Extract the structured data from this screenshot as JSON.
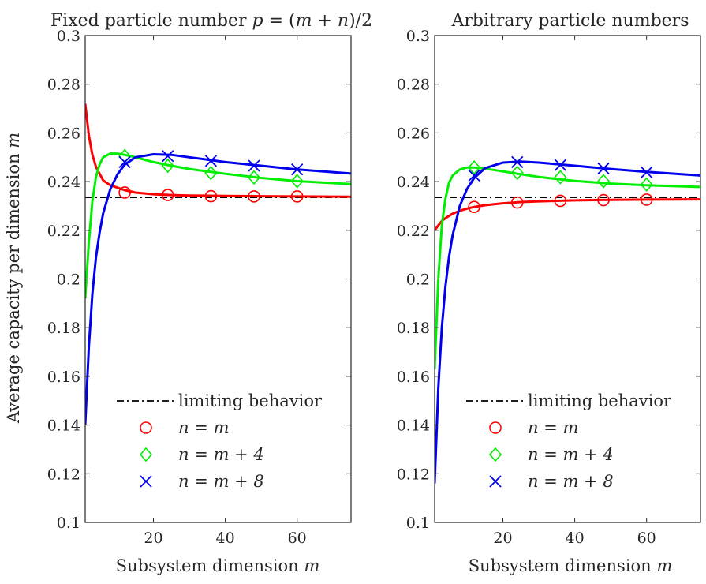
{
  "chart_data": [
    {
      "type": "line",
      "title": "Fixed particle number p = (m + n)/2",
      "xlabel": "Subsystem dimension m",
      "ylabel": "Average capacity per dimension m",
      "xlim": [
        1,
        75
      ],
      "ylim": [
        0.1,
        0.3
      ],
      "xticks": [
        "20",
        "40",
        "60"
      ],
      "yticks": [
        "0.1",
        "0.12",
        "0.14",
        "0.16",
        "0.18",
        "0.2",
        "0.22",
        "0.24",
        "0.26",
        "0.28",
        "0.3"
      ],
      "grid": false,
      "legend_position": "bottom-right",
      "limiting": {
        "name": "limiting behavior",
        "y": 0.2335
      },
      "series": [
        {
          "name": "n = m",
          "color": "#ff0000",
          "marker": "circle",
          "curve": {
            "x": [
              1,
              2,
              3,
              4,
              6,
              8,
              10,
              12,
              15,
              20,
              25,
              30,
              40,
              50,
              60,
              75
            ],
            "y": [
              0.272,
              0.259,
              0.251,
              0.246,
              0.2405,
              0.2385,
              0.2375,
              0.2365,
              0.2355,
              0.2348,
              0.2345,
              0.2343,
              0.2341,
              0.234,
              0.2339,
              0.2338
            ]
          },
          "markers": {
            "x": [
              12,
              24,
              36,
              48,
              60
            ],
            "y": [
              0.2355,
              0.2345,
              0.234,
              0.2339,
              0.2339
            ]
          }
        },
        {
          "name": "n = m + 4",
          "color": "#00ee00",
          "marker": "diamond",
          "curve": {
            "x": [
              1,
              2,
              3,
              4,
              5,
              6,
              8,
              10,
              12,
              15,
              20,
              25,
              30,
              40,
              50,
              60,
              75
            ],
            "y": [
              0.192,
              0.215,
              0.232,
              0.242,
              0.247,
              0.25,
              0.2515,
              0.2515,
              0.251,
              0.25,
              0.248,
              0.2465,
              0.2452,
              0.2432,
              0.2415,
              0.2402,
              0.239
            ]
          },
          "markers": {
            "x": [
              12,
              24,
              36,
              48,
              60
            ],
            "y": [
              0.2505,
              0.2465,
              0.2435,
              0.2417,
              0.2402
            ]
          }
        },
        {
          "name": "n = m + 8",
          "color": "#0000ee",
          "marker": "cross",
          "curve": {
            "x": [
              1,
              2,
              3,
              4,
              5,
              6,
              8,
              10,
              12,
              15,
              20,
              25,
              30,
              40,
              50,
              60,
              75
            ],
            "y": [
              0.14,
              0.172,
              0.194,
              0.209,
              0.219,
              0.227,
              0.237,
              0.243,
              0.247,
              0.25,
              0.2512,
              0.251,
              0.25,
              0.248,
              0.2465,
              0.245,
              0.2433
            ]
          },
          "markers": {
            "x": [
              12,
              24,
              36,
              48,
              60
            ],
            "y": [
              0.248,
              0.2505,
              0.2485,
              0.2465,
              0.245
            ]
          }
        }
      ]
    },
    {
      "type": "line",
      "title": "Arbitrary particle numbers",
      "xlabel": "Subsystem dimension m",
      "ylabel": "",
      "xlim": [
        1,
        75
      ],
      "ylim": [
        0.1,
        0.3
      ],
      "xticks": [
        "20",
        "40",
        "60"
      ],
      "yticks": [
        "0.1",
        "0.12",
        "0.14",
        "0.16",
        "0.18",
        "0.2",
        "0.22",
        "0.24",
        "0.26",
        "0.28",
        "0.3"
      ],
      "grid": false,
      "legend_position": "bottom-right",
      "limiting": {
        "name": "limiting behavior",
        "y": 0.2335
      },
      "series": [
        {
          "name": "n = m",
          "color": "#ff0000",
          "marker": "circle",
          "curve": {
            "x": [
              1,
              2,
              3,
              4,
              6,
              8,
              10,
              12,
              15,
              20,
              25,
              30,
              40,
              50,
              60,
              75
            ],
            "y": [
              0.22,
              0.222,
              0.2238,
              0.225,
              0.2268,
              0.228,
              0.2289,
              0.2296,
              0.2303,
              0.2311,
              0.2316,
              0.2319,
              0.2323,
              0.2325,
              0.2326,
              0.2327
            ]
          },
          "markers": {
            "x": [
              12,
              24,
              36,
              48,
              60
            ],
            "y": [
              0.2296,
              0.2314,
              0.2321,
              0.2324,
              0.2326
            ]
          }
        },
        {
          "name": "n = m + 4",
          "color": "#00ee00",
          "marker": "diamond",
          "curve": {
            "x": [
              1,
              2,
              3,
              4,
              5,
              6,
              8,
              10,
              12,
              15,
              20,
              25,
              30,
              40,
              50,
              60,
              75
            ],
            "y": [
              0.163,
              0.2,
              0.222,
              0.233,
              0.2395,
              0.2425,
              0.245,
              0.2458,
              0.2458,
              0.2453,
              0.2442,
              0.243,
              0.2419,
              0.2403,
              0.2392,
              0.2385,
              0.2378
            ]
          },
          "markers": {
            "x": [
              12,
              24,
              36,
              48,
              60
            ],
            "y": [
              0.2458,
              0.2436,
              0.2418,
              0.2402,
              0.2388
            ]
          }
        },
        {
          "name": "n = m + 8",
          "color": "#0000ee",
          "marker": "cross",
          "curve": {
            "x": [
              1,
              2,
              3,
              4,
              5,
              6,
              8,
              10,
              12,
              15,
              20,
              25,
              30,
              40,
              50,
              60,
              75
            ],
            "y": [
              0.116,
              0.155,
              0.18,
              0.197,
              0.209,
              0.218,
              0.23,
              0.237,
              0.2415,
              0.2455,
              0.2478,
              0.2482,
              0.2478,
              0.2465,
              0.2452,
              0.244,
              0.2425
            ]
          },
          "markers": {
            "x": [
              12,
              24,
              36,
              48,
              60
            ],
            "y": [
              0.2425,
              0.248,
              0.2468,
              0.2454,
              0.2438
            ]
          }
        }
      ]
    }
  ]
}
